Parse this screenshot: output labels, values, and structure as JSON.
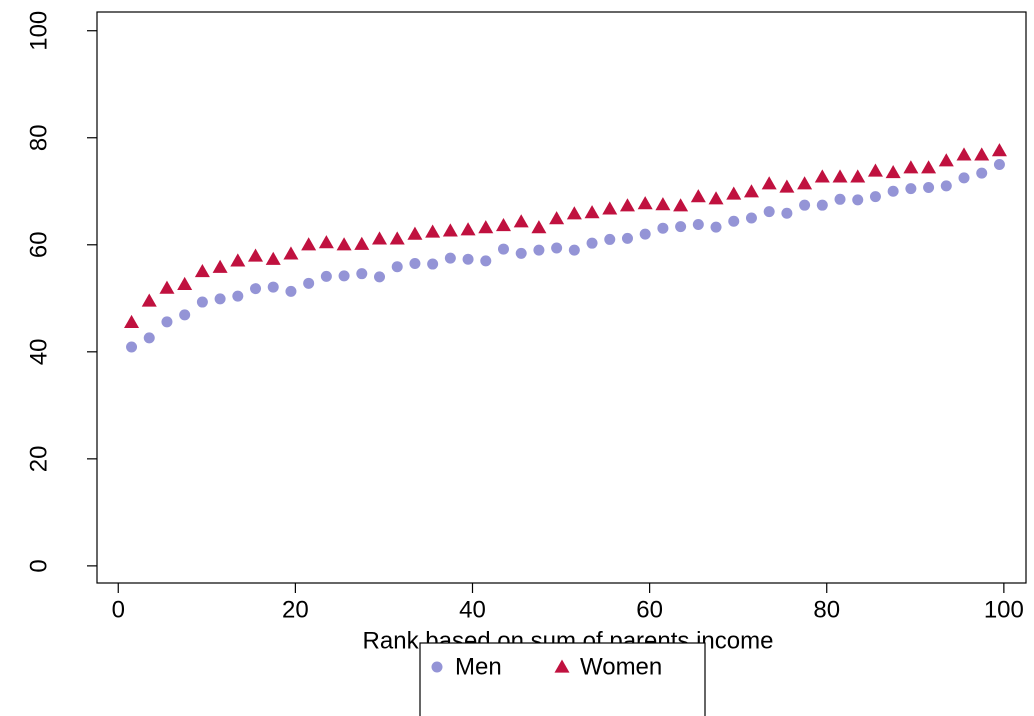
{
  "chart_data": {
    "type": "scatter",
    "x_label": "Rank based on sum of parents income",
    "x": [
      1.5,
      3.5,
      5.5,
      7.5,
      9.5,
      11.5,
      13.5,
      15.5,
      17.5,
      19.5,
      21.5,
      23.5,
      25.5,
      27.5,
      29.5,
      31.5,
      33.5,
      35.5,
      37.5,
      39.5,
      41.5,
      43.5,
      45.5,
      47.5,
      49.5,
      51.5,
      53.5,
      55.5,
      57.5,
      59.5,
      61.5,
      63.5,
      65.5,
      67.5,
      69.5,
      71.5,
      73.5,
      75.5,
      77.5,
      79.5,
      81.5,
      83.5,
      85.5,
      87.5,
      89.5,
      91.5,
      93.5,
      95.5,
      97.5,
      99.5
    ],
    "series": [
      {
        "name": "Men",
        "color": "#9494d6",
        "marker": "circle",
        "values": [
          40.9,
          42.6,
          45.6,
          46.9,
          49.3,
          49.9,
          50.4,
          51.8,
          52.1,
          51.3,
          52.8,
          54.1,
          54.2,
          54.6,
          54.0,
          55.9,
          56.5,
          56.4,
          57.5,
          57.3,
          57.0,
          59.2,
          58.4,
          59.0,
          59.4,
          59.0,
          60.3,
          61.0,
          61.2,
          62.0,
          63.1,
          63.4,
          63.8,
          63.3,
          64.4,
          65.0,
          66.2,
          65.9,
          67.4,
          67.4,
          68.5,
          68.4,
          69.0,
          70.0,
          70.5,
          70.7,
          71.0,
          72.5,
          73.4,
          75.0
        ]
      },
      {
        "name": "Women",
        "color": "#c0113f",
        "marker": "triangle",
        "values": [
          45.5,
          49.5,
          51.9,
          52.6,
          55.0,
          55.8,
          57.0,
          57.9,
          57.3,
          58.3,
          60.0,
          60.4,
          60.0,
          60.1,
          61.1,
          61.1,
          62.0,
          62.4,
          62.6,
          62.8,
          63.2,
          63.6,
          64.3,
          63.2,
          64.9,
          65.8,
          66.0,
          66.7,
          67.3,
          67.7,
          67.5,
          67.3,
          69.0,
          68.6,
          69.5,
          69.9,
          71.4,
          70.8,
          71.4,
          72.7,
          72.7,
          72.7,
          73.8,
          73.5,
          74.4,
          74.4,
          75.7,
          76.8,
          76.8,
          77.6
        ]
      }
    ],
    "xlim": [
      -2.4,
      102.5
    ],
    "xticks": [
      0,
      20,
      40,
      60,
      80,
      100
    ],
    "ylim": [
      -3.2,
      103.5
    ],
    "yticks": [
      0,
      20,
      40,
      60,
      80,
      100
    ],
    "legend": "bottom"
  }
}
